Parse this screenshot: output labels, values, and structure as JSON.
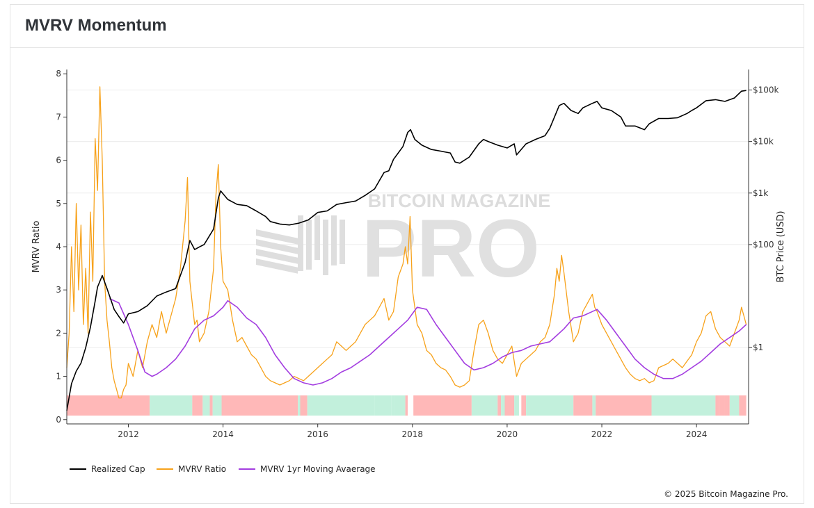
{
  "title": "MVRV Momentum",
  "copyright": "© 2025 Bitcoin Magazine Pro.",
  "watermark": {
    "top": "BITCOIN MAGAZINE",
    "main": "PRO"
  },
  "colors": {
    "realized_cap": "#000000",
    "mvrv_ratio": "#f7a21b",
    "mvrv_ma": "#a33de0",
    "band_red": "#ffb8b8",
    "band_green": "#c2f0dc",
    "grid": "#ececec"
  },
  "chart_data": {
    "type": "line",
    "xlim": [
      2010.7,
      2025.1
    ],
    "x_ticks": [
      2012,
      2014,
      2016,
      2018,
      2020,
      2022,
      2024
    ],
    "y_left": {
      "label": "MVRV Ratio",
      "lim": [
        -0.1,
        8.1
      ],
      "ticks": [
        0,
        1,
        2,
        3,
        4,
        5,
        6,
        7,
        8
      ]
    },
    "y_right": {
      "label": "BTC Price (USD)",
      "scale": "log",
      "lim": [
        0.033,
        250000
      ],
      "ticks": [
        1,
        100,
        1000,
        10000,
        100000
      ],
      "tick_labels": [
        "$1",
        "$100",
        "$1k",
        "$10k",
        "$100k"
      ]
    },
    "series": [
      {
        "name": "Realized Cap",
        "axis": "right",
        "x": [
          2010.7,
          2010.8,
          2010.9,
          2011.0,
          2011.1,
          2011.2,
          2011.3,
          2011.35,
          2011.45,
          2011.55,
          2011.7,
          2011.8,
          2011.9,
          2012.0,
          2012.2,
          2012.4,
          2012.6,
          2012.8,
          2013.0,
          2013.2,
          2013.3,
          2013.4,
          2013.5,
          2013.6,
          2013.8,
          2013.9,
          2013.95,
          2014.1,
          2014.3,
          2014.5,
          2014.7,
          2014.9,
          2015.0,
          2015.2,
          2015.4,
          2015.6,
          2015.8,
          2016.0,
          2016.2,
          2016.4,
          2016.6,
          2016.8,
          2017.0,
          2017.2,
          2017.4,
          2017.5,
          2017.6,
          2017.7,
          2017.8,
          2017.9,
          2017.96,
          2018.05,
          2018.2,
          2018.4,
          2018.6,
          2018.8,
          2018.9,
          2019.0,
          2019.2,
          2019.4,
          2019.5,
          2019.6,
          2019.8,
          2020.0,
          2020.15,
          2020.2,
          2020.4,
          2020.6,
          2020.8,
          2020.9,
          2021.0,
          2021.1,
          2021.2,
          2021.35,
          2021.5,
          2021.6,
          2021.8,
          2021.9,
          2022.0,
          2022.2,
          2022.4,
          2022.5,
          2022.7,
          2022.9,
          2023.0,
          2023.2,
          2023.4,
          2023.6,
          2023.8,
          2023.9,
          2024.0,
          2024.2,
          2024.4,
          2024.6,
          2024.8,
          2024.95,
          2025.05
        ],
        "y": [
          0.06,
          0.2,
          0.35,
          0.5,
          1.0,
          2.5,
          8.0,
          15,
          25,
          14,
          5.5,
          4.0,
          3.0,
          4.5,
          5.0,
          6.5,
          10,
          12,
          14,
          45,
          120,
          80,
          90,
          100,
          200,
          800,
          1100,
          750,
          600,
          570,
          450,
          350,
          280,
          250,
          240,
          260,
          300,
          420,
          450,
          600,
          650,
          700,
          900,
          1200,
          2500,
          2700,
          4500,
          6000,
          8000,
          15000,
          17000,
          11000,
          8500,
          7000,
          6500,
          6000,
          4000,
          3800,
          5000,
          9000,
          11000,
          10000,
          8500,
          7500,
          9000,
          5500,
          9000,
          11000,
          13000,
          18000,
          30000,
          50000,
          55000,
          40000,
          35000,
          45000,
          55000,
          60000,
          45000,
          40000,
          30000,
          20000,
          20000,
          17000,
          22000,
          28000,
          28000,
          29000,
          35000,
          40000,
          45000,
          62000,
          65000,
          60000,
          70000,
          95000,
          98000
        ]
      },
      {
        "name": "MVRV Ratio",
        "axis": "left",
        "x": [
          2010.7,
          2010.75,
          2010.8,
          2010.85,
          2010.9,
          2010.95,
          2011.0,
          2011.05,
          2011.1,
          2011.15,
          2011.2,
          2011.25,
          2011.3,
          2011.35,
          2011.4,
          2011.45,
          2011.5,
          2011.55,
          2011.6,
          2011.65,
          2011.7,
          2011.75,
          2011.8,
          2011.85,
          2011.9,
          2011.95,
          2012.0,
          2012.1,
          2012.2,
          2012.3,
          2012.4,
          2012.5,
          2012.6,
          2012.7,
          2012.8,
          2012.9,
          2013.0,
          2013.1,
          2013.2,
          2013.25,
          2013.3,
          2013.35,
          2013.4,
          2013.45,
          2013.5,
          2013.6,
          2013.7,
          2013.8,
          2013.85,
          2013.9,
          2013.95,
          2014.0,
          2014.1,
          2014.2,
          2014.3,
          2014.4,
          2014.5,
          2014.6,
          2014.7,
          2014.8,
          2014.9,
          2015.0,
          2015.1,
          2015.2,
          2015.3,
          2015.4,
          2015.5,
          2015.6,
          2015.7,
          2015.8,
          2015.9,
          2016.0,
          2016.1,
          2016.2,
          2016.3,
          2016.4,
          2016.5,
          2016.6,
          2016.7,
          2016.8,
          2016.9,
          2017.0,
          2017.1,
          2017.2,
          2017.3,
          2017.4,
          2017.5,
          2017.6,
          2017.7,
          2017.8,
          2017.85,
          2017.9,
          2017.95,
          2018.0,
          2018.1,
          2018.2,
          2018.3,
          2018.4,
          2018.5,
          2018.6,
          2018.7,
          2018.8,
          2018.9,
          2019.0,
          2019.1,
          2019.2,
          2019.3,
          2019.4,
          2019.5,
          2019.6,
          2019.7,
          2019.8,
          2019.9,
          2020.0,
          2020.1,
          2020.2,
          2020.3,
          2020.4,
          2020.5,
          2020.6,
          2020.7,
          2020.8,
          2020.9,
          2021.0,
          2021.05,
          2021.1,
          2021.15,
          2021.2,
          2021.3,
          2021.4,
          2021.5,
          2021.6,
          2021.7,
          2021.8,
          2021.85,
          2021.9,
          2022.0,
          2022.1,
          2022.2,
          2022.3,
          2022.4,
          2022.5,
          2022.6,
          2022.7,
          2022.8,
          2022.9,
          2023.0,
          2023.1,
          2023.2,
          2023.3,
          2023.4,
          2023.5,
          2023.6,
          2023.7,
          2023.8,
          2023.9,
          2024.0,
          2024.1,
          2024.2,
          2024.3,
          2024.4,
          2024.5,
          2024.6,
          2024.7,
          2024.8,
          2024.9,
          2024.95,
          2025.0,
          2025.05
        ],
        "y": [
          1.2,
          2.0,
          4.0,
          2.5,
          5.0,
          3.0,
          4.5,
          2.2,
          3.5,
          2.0,
          4.8,
          3.2,
          6.5,
          5.3,
          7.7,
          6.0,
          3.2,
          2.3,
          1.8,
          1.2,
          0.9,
          0.7,
          0.5,
          0.5,
          0.7,
          0.8,
          1.3,
          1.0,
          1.6,
          1.2,
          1.8,
          2.2,
          1.9,
          2.5,
          2.0,
          2.4,
          2.8,
          3.5,
          4.6,
          5.6,
          3.2,
          2.7,
          2.2,
          2.3,
          1.8,
          2.0,
          2.5,
          3.5,
          5.2,
          5.9,
          4.0,
          3.2,
          3.0,
          2.3,
          1.8,
          1.9,
          1.7,
          1.5,
          1.4,
          1.2,
          1.0,
          0.9,
          0.85,
          0.8,
          0.85,
          0.9,
          1.0,
          0.95,
          0.9,
          1.0,
          1.1,
          1.2,
          1.3,
          1.4,
          1.5,
          1.8,
          1.7,
          1.6,
          1.7,
          1.8,
          2.0,
          2.2,
          2.3,
          2.4,
          2.6,
          2.8,
          2.3,
          2.5,
          3.3,
          3.6,
          4.0,
          3.6,
          4.7,
          3.0,
          2.2,
          2.0,
          1.6,
          1.5,
          1.3,
          1.2,
          1.15,
          1.0,
          0.8,
          0.75,
          0.8,
          0.9,
          1.6,
          2.2,
          2.3,
          2.0,
          1.6,
          1.4,
          1.3,
          1.5,
          1.7,
          1.0,
          1.3,
          1.4,
          1.5,
          1.6,
          1.8,
          1.9,
          2.2,
          2.9,
          3.5,
          3.2,
          3.8,
          3.4,
          2.5,
          1.8,
          2.0,
          2.5,
          2.7,
          2.9,
          2.6,
          2.5,
          2.2,
          2.0,
          1.8,
          1.6,
          1.4,
          1.2,
          1.05,
          0.95,
          0.9,
          0.95,
          0.85,
          0.9,
          1.2,
          1.25,
          1.3,
          1.4,
          1.3,
          1.2,
          1.35,
          1.5,
          1.8,
          2.0,
          2.4,
          2.5,
          2.1,
          1.9,
          1.8,
          1.7,
          2.0,
          2.3,
          2.6,
          2.4,
          2.2
        ]
      },
      {
        "name": "MVRV 1yr Moving Avaerage",
        "axis": "left",
        "x": [
          2011.6,
          2011.8,
          2012.0,
          2012.2,
          2012.35,
          2012.5,
          2012.6,
          2012.8,
          2013.0,
          2013.2,
          2013.4,
          2013.6,
          2013.8,
          2013.9,
          2014.0,
          2014.1,
          2014.3,
          2014.5,
          2014.7,
          2014.9,
          2015.1,
          2015.3,
          2015.5,
          2015.7,
          2015.9,
          2016.1,
          2016.3,
          2016.5,
          2016.7,
          2016.9,
          2017.1,
          2017.3,
          2017.5,
          2017.7,
          2017.9,
          2018.0,
          2018.1,
          2018.3,
          2018.5,
          2018.7,
          2018.9,
          2019.1,
          2019.3,
          2019.5,
          2019.7,
          2019.9,
          2020.1,
          2020.3,
          2020.5,
          2020.7,
          2020.9,
          2021.0,
          2021.2,
          2021.4,
          2021.6,
          2021.8,
          2021.9,
          2022.1,
          2022.3,
          2022.5,
          2022.7,
          2022.9,
          2023.1,
          2023.3,
          2023.5,
          2023.7,
          2023.9,
          2024.1,
          2024.3,
          2024.5,
          2024.7,
          2024.9,
          2025.05
        ],
        "y": [
          2.8,
          2.7,
          2.2,
          1.6,
          1.1,
          1.0,
          1.05,
          1.2,
          1.4,
          1.7,
          2.1,
          2.3,
          2.4,
          2.5,
          2.6,
          2.75,
          2.6,
          2.35,
          2.2,
          1.9,
          1.5,
          1.2,
          0.95,
          0.85,
          0.8,
          0.85,
          0.95,
          1.1,
          1.2,
          1.35,
          1.5,
          1.7,
          1.9,
          2.1,
          2.3,
          2.45,
          2.6,
          2.55,
          2.2,
          1.9,
          1.6,
          1.3,
          1.15,
          1.2,
          1.3,
          1.45,
          1.55,
          1.6,
          1.7,
          1.75,
          1.8,
          1.9,
          2.1,
          2.35,
          2.4,
          2.5,
          2.55,
          2.3,
          2.0,
          1.7,
          1.4,
          1.2,
          1.05,
          0.95,
          0.95,
          1.05,
          1.2,
          1.35,
          1.55,
          1.75,
          1.9,
          2.05,
          2.2
        ]
      }
    ],
    "bands": [
      {
        "start": 2010.7,
        "end": 2012.45,
        "color": "red"
      },
      {
        "start": 2012.45,
        "end": 2013.35,
        "color": "green"
      },
      {
        "start": 2013.35,
        "end": 2013.57,
        "color": "red"
      },
      {
        "start": 2013.57,
        "end": 2013.72,
        "color": "green"
      },
      {
        "start": 2013.72,
        "end": 2013.78,
        "color": "red"
      },
      {
        "start": 2013.78,
        "end": 2013.97,
        "color": "green"
      },
      {
        "start": 2013.97,
        "end": 2014.05,
        "color": "red"
      },
      {
        "start": 2014.05,
        "end": 2015.58,
        "color": "red"
      },
      {
        "start": 2015.58,
        "end": 2015.63,
        "color": "green"
      },
      {
        "start": 2015.63,
        "end": 2015.78,
        "color": "red"
      },
      {
        "start": 2015.78,
        "end": 2017.2,
        "color": "green"
      },
      {
        "start": 2017.2,
        "end": 2017.55,
        "color": "green"
      },
      {
        "start": 2017.55,
        "end": 2017.62,
        "color": "green"
      },
      {
        "start": 2017.62,
        "end": 2017.85,
        "color": "green"
      },
      {
        "start": 2017.85,
        "end": 2017.9,
        "color": "red"
      },
      {
        "start": 2018.02,
        "end": 2019.25,
        "color": "red"
      },
      {
        "start": 2019.25,
        "end": 2019.8,
        "color": "green"
      },
      {
        "start": 2019.8,
        "end": 2019.87,
        "color": "red"
      },
      {
        "start": 2019.87,
        "end": 2019.95,
        "color": "green"
      },
      {
        "start": 2019.95,
        "end": 2020.15,
        "color": "red"
      },
      {
        "start": 2020.15,
        "end": 2020.25,
        "color": "green"
      },
      {
        "start": 2020.3,
        "end": 2020.4,
        "color": "red"
      },
      {
        "start": 2020.4,
        "end": 2021.4,
        "color": "green"
      },
      {
        "start": 2021.4,
        "end": 2021.8,
        "color": "red"
      },
      {
        "start": 2021.8,
        "end": 2021.87,
        "color": "green"
      },
      {
        "start": 2021.87,
        "end": 2023.05,
        "color": "red"
      },
      {
        "start": 2023.05,
        "end": 2024.4,
        "color": "green"
      },
      {
        "start": 2024.4,
        "end": 2024.47,
        "color": "red"
      },
      {
        "start": 2024.47,
        "end": 2024.6,
        "color": "red"
      },
      {
        "start": 2024.6,
        "end": 2024.7,
        "color": "red"
      },
      {
        "start": 2024.7,
        "end": 2024.9,
        "color": "green"
      },
      {
        "start": 2024.9,
        "end": 2025.05,
        "color": "red"
      }
    ],
    "legend": {
      "placement": "bottom-left",
      "entries": [
        "Realized Cap",
        "MVRV Ratio",
        "MVRV 1yr Moving Avaerage"
      ]
    },
    "grid": true
  }
}
